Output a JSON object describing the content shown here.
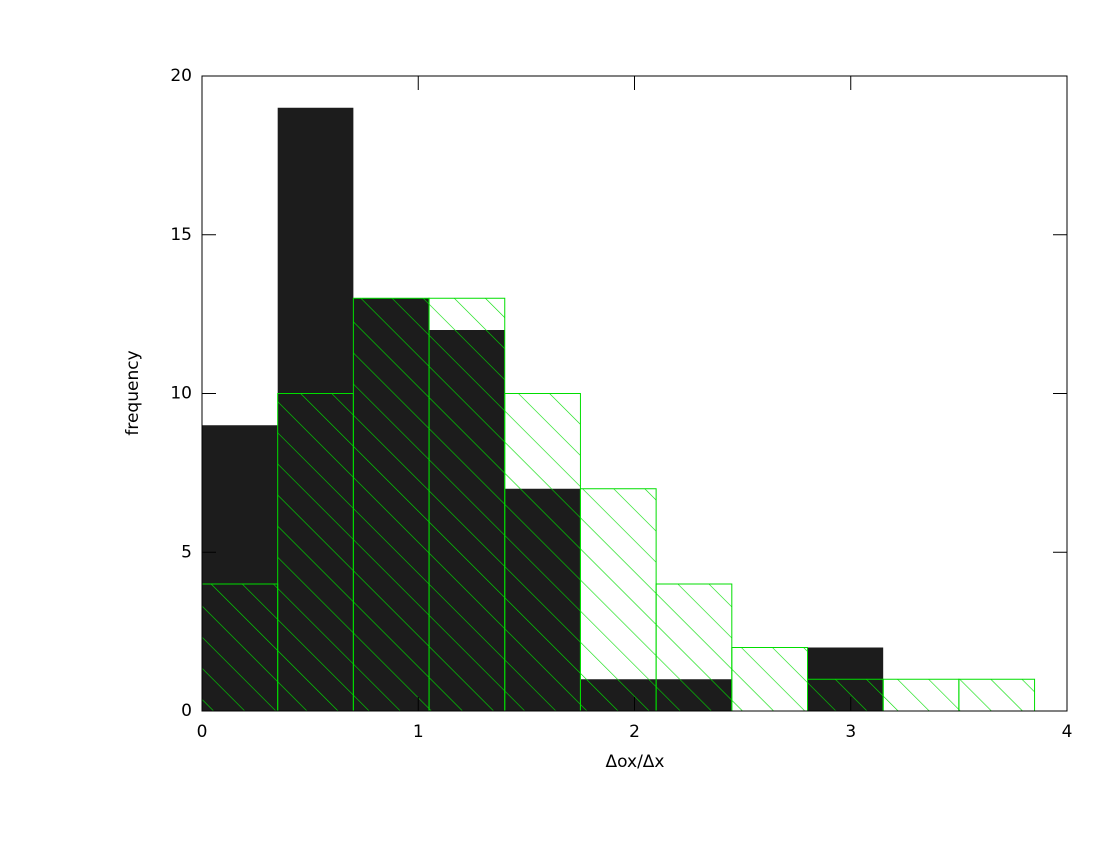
{
  "chart_data": {
    "type": "histogram",
    "x_label": "Δox/Δx",
    "y_label": "frequency",
    "bins": [
      0,
      0.35,
      0.7,
      1.05,
      1.4,
      1.75,
      2.1,
      2.45,
      2.8,
      3.15,
      3.5,
      3.85
    ],
    "series": [
      {
        "color": "#1c1c1c",
        "values": [
          9,
          19,
          13,
          12,
          7,
          1,
          1,
          0,
          2,
          0,
          0
        ]
      },
      {
        "color": "#00dd00",
        "hatch": true,
        "values": [
          4,
          10,
          13,
          13,
          10,
          7,
          4,
          2,
          1,
          1,
          1
        ]
      }
    ],
    "xlim": [
      0,
      4
    ],
    "xticks": [
      0,
      1,
      2,
      3,
      4
    ],
    "ylim": [
      0,
      20
    ],
    "yticks": [
      0,
      5,
      10,
      15,
      20
    ]
  }
}
